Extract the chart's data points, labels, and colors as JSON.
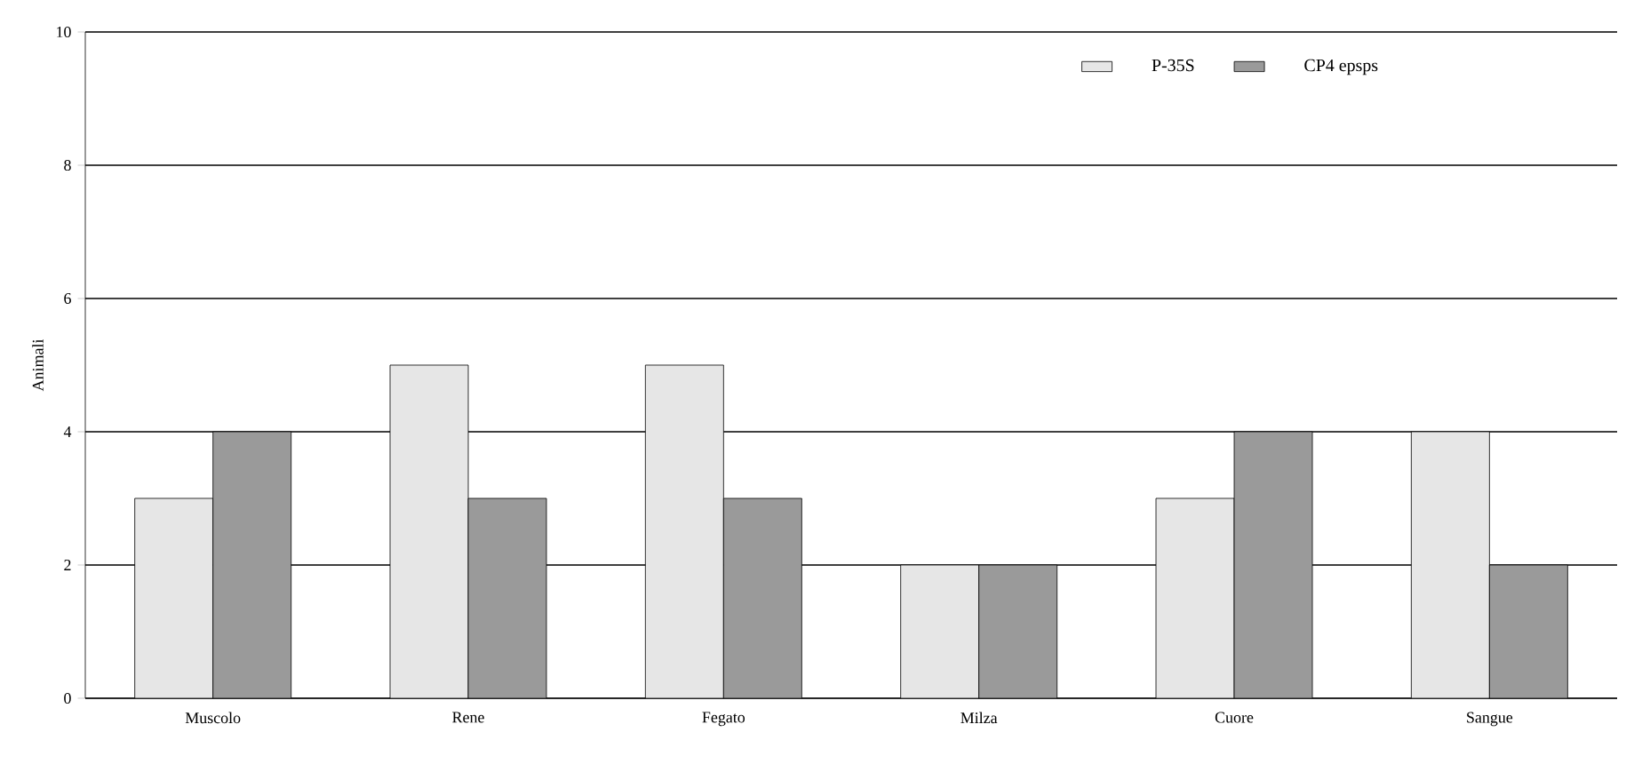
{
  "chart_data": {
    "type": "bar",
    "ylabel": "Animali",
    "categories": [
      "Muscolo",
      "Rene",
      "Fegato",
      "Milza",
      "Cuore",
      "Sangue"
    ],
    "series": [
      {
        "name": "P-35S",
        "color": "#e6e6e6",
        "values": [
          3,
          5,
          5,
          2,
          3,
          4
        ]
      },
      {
        "name": "CP4 epsps",
        "color": "#9a9a9a",
        "values": [
          4,
          3,
          3,
          2,
          4,
          2
        ]
      }
    ],
    "ylim": [
      0,
      10
    ],
    "yticks": [
      0,
      2,
      4,
      6,
      8,
      10
    ],
    "grid": "y",
    "legend": "top right"
  }
}
